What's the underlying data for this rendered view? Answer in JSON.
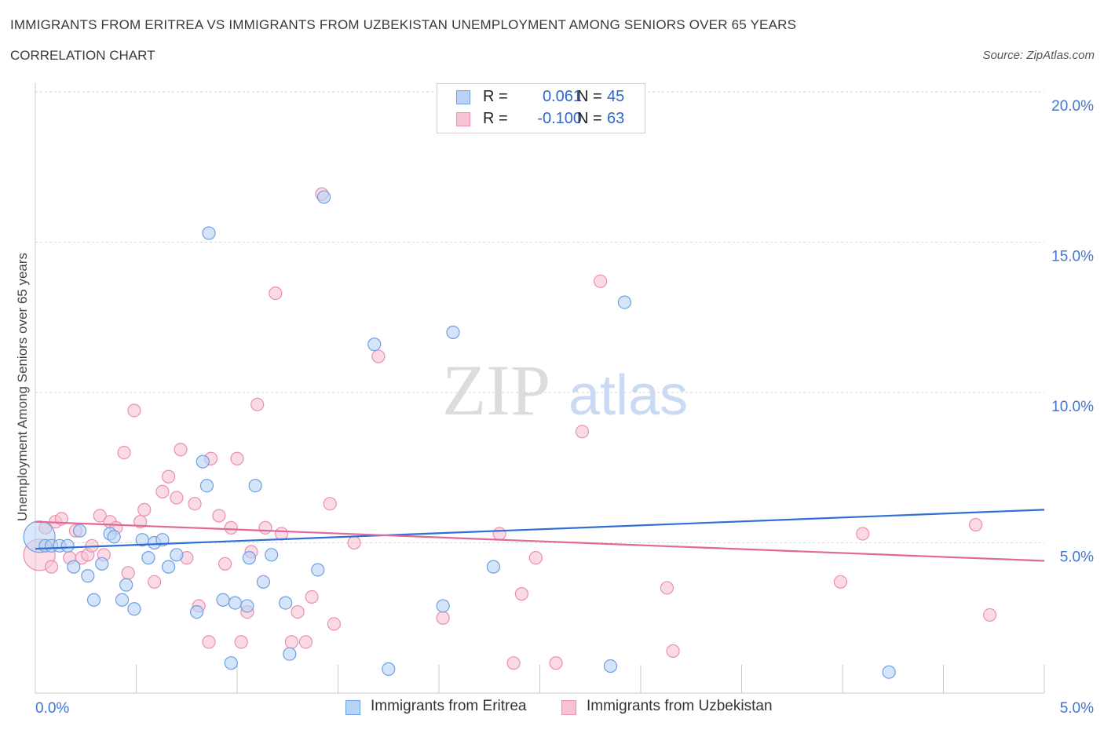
{
  "header": {
    "title": "IMMIGRANTS FROM ERITREA VS IMMIGRANTS FROM UZBEKISTAN UNEMPLOYMENT AMONG SENIORS OVER 65 YEARS",
    "subtitle": "CORRELATION CHART",
    "source": "Source: ZipAtlas.com"
  },
  "legend": {
    "r_label": "R =",
    "n_label": "N =",
    "series": [
      {
        "r": "0.061",
        "n": "45"
      },
      {
        "r": "-0.100",
        "n": "63"
      }
    ]
  },
  "watermark": {
    "zip": "ZIP",
    "atlas": "atlas"
  },
  "colors": {
    "eritrea_fill": "#b8d3f5",
    "eritrea_stroke": "#6f9fe0",
    "eritrea_line": "#2f6fd6",
    "uzbekistan_fill": "#f7c3d3",
    "uzbekistan_stroke": "#ec8fab",
    "uzbekistan_line": "#e0689a",
    "tick_label": "#3f76d0",
    "grid": "#d6d6d6"
  },
  "chart_data": {
    "type": "scatter",
    "title": "IMMIGRANTS FROM ERITREA VS IMMIGRANTS FROM UZBEKISTAN UNEMPLOYMENT AMONG SENIORS OVER 65 YEARS",
    "xlabel": "",
    "ylabel": "Unemployment Among Seniors over 65 years",
    "xlim": [
      0,
      5
    ],
    "ylim": [
      0,
      20
    ],
    "x_tick_labels": [
      "0.0%",
      "5.0%"
    ],
    "y_ticks": [
      5,
      10,
      15,
      20
    ],
    "y_tick_labels": [
      "5.0%",
      "10.0%",
      "15.0%",
      "20.0%"
    ],
    "grid": true,
    "legend_position": "top-center",
    "series": [
      {
        "name": "Immigrants from Eritrea",
        "r": 0.061,
        "n": 45,
        "trend": {
          "x": [
            0,
            5
          ],
          "y": [
            4.8,
            6.1
          ]
        },
        "points": [
          {
            "x": 0.02,
            "y": 5.2,
            "big": true
          },
          {
            "x": 0.05,
            "y": 4.9
          },
          {
            "x": 0.08,
            "y": 4.9
          },
          {
            "x": 0.12,
            "y": 4.9
          },
          {
            "x": 0.16,
            "y": 4.9
          },
          {
            "x": 0.19,
            "y": 4.2
          },
          {
            "x": 0.22,
            "y": 5.4
          },
          {
            "x": 0.26,
            "y": 3.9
          },
          {
            "x": 0.29,
            "y": 3.1
          },
          {
            "x": 0.33,
            "y": 4.3
          },
          {
            "x": 0.37,
            "y": 5.3
          },
          {
            "x": 0.39,
            "y": 5.2
          },
          {
            "x": 0.43,
            "y": 3.1
          },
          {
            "x": 0.45,
            "y": 3.6
          },
          {
            "x": 0.49,
            "y": 2.8
          },
          {
            "x": 0.53,
            "y": 5.1
          },
          {
            "x": 0.56,
            "y": 4.5
          },
          {
            "x": 0.59,
            "y": 5.0
          },
          {
            "x": 0.63,
            "y": 5.1
          },
          {
            "x": 0.66,
            "y": 4.2
          },
          {
            "x": 0.7,
            "y": 4.6
          },
          {
            "x": 0.8,
            "y": 2.7
          },
          {
            "x": 0.83,
            "y": 7.7
          },
          {
            "x": 0.85,
            "y": 6.9
          },
          {
            "x": 0.86,
            "y": 15.3
          },
          {
            "x": 0.93,
            "y": 3.1
          },
          {
            "x": 0.97,
            "y": 1.0
          },
          {
            "x": 0.99,
            "y": 3.0
          },
          {
            "x": 1.05,
            "y": 2.9
          },
          {
            "x": 1.06,
            "y": 4.5
          },
          {
            "x": 1.09,
            "y": 6.9
          },
          {
            "x": 1.13,
            "y": 3.7
          },
          {
            "x": 1.17,
            "y": 4.6
          },
          {
            "x": 1.24,
            "y": 3.0
          },
          {
            "x": 1.26,
            "y": 1.3
          },
          {
            "x": 1.4,
            "y": 4.1
          },
          {
            "x": 1.43,
            "y": 16.5
          },
          {
            "x": 1.68,
            "y": 11.6
          },
          {
            "x": 1.75,
            "y": 0.8
          },
          {
            "x": 2.02,
            "y": 2.9
          },
          {
            "x": 2.07,
            "y": 12.0
          },
          {
            "x": 2.27,
            "y": 4.2
          },
          {
            "x": 2.85,
            "y": 0.9
          },
          {
            "x": 2.92,
            "y": 13.0
          },
          {
            "x": 4.23,
            "y": 0.7
          }
        ]
      },
      {
        "name": "Immigrants from Uzbekistan",
        "r": -0.1,
        "n": 63,
        "trend": {
          "x": [
            0,
            5
          ],
          "y": [
            5.7,
            4.4
          ]
        },
        "points": [
          {
            "x": 0.02,
            "y": 4.6,
            "big": true
          },
          {
            "x": 0.05,
            "y": 5.5
          },
          {
            "x": 0.08,
            "y": 4.2
          },
          {
            "x": 0.1,
            "y": 5.7
          },
          {
            "x": 0.13,
            "y": 5.8
          },
          {
            "x": 0.17,
            "y": 4.5
          },
          {
            "x": 0.2,
            "y": 5.4
          },
          {
            "x": 0.23,
            "y": 4.5
          },
          {
            "x": 0.26,
            "y": 4.6
          },
          {
            "x": 0.28,
            "y": 4.9
          },
          {
            "x": 0.32,
            "y": 5.9
          },
          {
            "x": 0.34,
            "y": 4.6
          },
          {
            "x": 0.37,
            "y": 5.7
          },
          {
            "x": 0.4,
            "y": 5.5
          },
          {
            "x": 0.44,
            "y": 8.0
          },
          {
            "x": 0.46,
            "y": 4.0
          },
          {
            "x": 0.49,
            "y": 9.4
          },
          {
            "x": 0.52,
            "y": 5.7
          },
          {
            "x": 0.54,
            "y": 6.1
          },
          {
            "x": 0.59,
            "y": 3.7
          },
          {
            "x": 0.63,
            "y": 6.7
          },
          {
            "x": 0.66,
            "y": 7.2
          },
          {
            "x": 0.7,
            "y": 6.5
          },
          {
            "x": 0.72,
            "y": 8.1
          },
          {
            "x": 0.75,
            "y": 4.5
          },
          {
            "x": 0.79,
            "y": 6.3
          },
          {
            "x": 0.81,
            "y": 2.9
          },
          {
            "x": 0.86,
            "y": 1.7
          },
          {
            "x": 0.87,
            "y": 7.8
          },
          {
            "x": 0.91,
            "y": 5.9
          },
          {
            "x": 0.94,
            "y": 4.3
          },
          {
            "x": 0.97,
            "y": 5.5
          },
          {
            "x": 1.0,
            "y": 7.8
          },
          {
            "x": 1.02,
            "y": 1.7
          },
          {
            "x": 1.05,
            "y": 2.7
          },
          {
            "x": 1.07,
            "y": 4.7
          },
          {
            "x": 1.1,
            "y": 9.6
          },
          {
            "x": 1.14,
            "y": 5.5
          },
          {
            "x": 1.19,
            "y": 13.3
          },
          {
            "x": 1.22,
            "y": 5.3
          },
          {
            "x": 1.27,
            "y": 1.7
          },
          {
            "x": 1.3,
            "y": 2.7
          },
          {
            "x": 1.34,
            "y": 1.7
          },
          {
            "x": 1.37,
            "y": 3.2
          },
          {
            "x": 1.42,
            "y": 16.6
          },
          {
            "x": 1.46,
            "y": 6.3
          },
          {
            "x": 1.48,
            "y": 2.3
          },
          {
            "x": 1.58,
            "y": 5.0
          },
          {
            "x": 1.7,
            "y": 11.2
          },
          {
            "x": 2.02,
            "y": 2.5
          },
          {
            "x": 2.3,
            "y": 5.3
          },
          {
            "x": 2.37,
            "y": 1.0
          },
          {
            "x": 2.41,
            "y": 3.3
          },
          {
            "x": 2.48,
            "y": 4.5
          },
          {
            "x": 2.58,
            "y": 1.0
          },
          {
            "x": 2.71,
            "y": 8.7
          },
          {
            "x": 2.8,
            "y": 13.7
          },
          {
            "x": 3.13,
            "y": 3.5
          },
          {
            "x": 3.16,
            "y": 1.4
          },
          {
            "x": 3.99,
            "y": 3.7
          },
          {
            "x": 4.1,
            "y": 5.3
          },
          {
            "x": 4.66,
            "y": 5.6
          },
          {
            "x": 4.73,
            "y": 2.6
          }
        ]
      }
    ]
  },
  "bottom_legend": {
    "items": [
      {
        "label": "Immigrants from Eritrea"
      },
      {
        "label": "Immigrants from Uzbekistan"
      }
    ]
  }
}
